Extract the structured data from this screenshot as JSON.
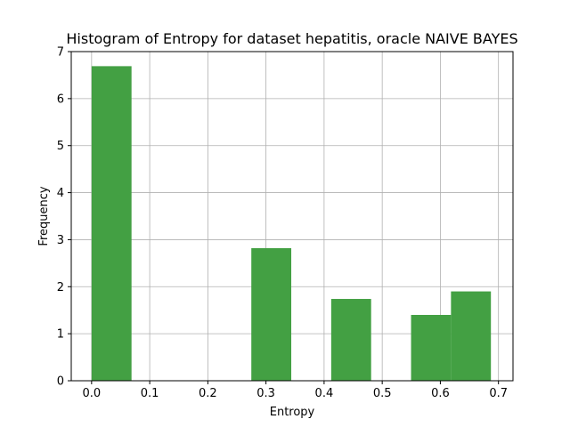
{
  "chart_data": {
    "type": "bar",
    "title": "Histogram of Entropy for dataset hepatitis, oracle NAIVE BAYES",
    "xlabel": "Entropy",
    "ylabel": "Frequency",
    "xlim": [
      -0.035,
      0.725
    ],
    "ylim": [
      0,
      7
    ],
    "xticks": [
      0.0,
      0.1,
      0.2,
      0.3,
      0.4,
      0.5,
      0.6,
      0.7
    ],
    "xtick_labels": [
      "0.0",
      "0.1",
      "0.2",
      "0.3",
      "0.4",
      "0.5",
      "0.6",
      "0.7"
    ],
    "yticks": [
      0,
      1,
      2,
      3,
      4,
      5,
      6,
      7
    ],
    "ytick_labels": [
      "0",
      "1",
      "2",
      "3",
      "4",
      "5",
      "6",
      "7"
    ],
    "grid": true,
    "bar_color": "#43a043",
    "bins": [
      {
        "x0": 0.0,
        "x1": 0.0687,
        "value": 6.69
      },
      {
        "x0": 0.0687,
        "x1": 0.1374,
        "value": 0
      },
      {
        "x0": 0.1374,
        "x1": 0.2061,
        "value": 0
      },
      {
        "x0": 0.2061,
        "x1": 0.2748,
        "value": 0
      },
      {
        "x0": 0.2748,
        "x1": 0.3435,
        "value": 2.82
      },
      {
        "x0": 0.3435,
        "x1": 0.4122,
        "value": 0
      },
      {
        "x0": 0.4122,
        "x1": 0.4809,
        "value": 1.74
      },
      {
        "x0": 0.4809,
        "x1": 0.5496,
        "value": 0
      },
      {
        "x0": 0.5496,
        "x1": 0.6183,
        "value": 1.4
      },
      {
        "x0": 0.6183,
        "x1": 0.687,
        "value": 1.9
      }
    ]
  }
}
